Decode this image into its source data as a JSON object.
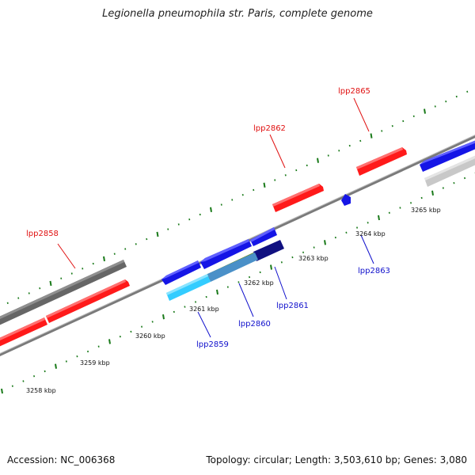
{
  "header": {
    "title": "Legionella pneumophila str. Paris, complete genome"
  },
  "footer": {
    "accession": "Accession: NC_006368",
    "summary": "Topology: circular; Length: 3,503,610 bp; Genes: 3,080"
  },
  "colors": {
    "forward_gene": "#ff1a1a",
    "reverse_gene": "#1515e6",
    "forward_label": "#e01010",
    "reverse_label": "#1010cc",
    "backbone": "#8a8a8a",
    "tick": "#1a7a1a",
    "pseudo_dark": "#606060",
    "pseudo_light": "#c8c8c8",
    "rna_cyan": "#33ccff",
    "rna_olive": "#6b8e23",
    "navy": "#101080"
  },
  "scale_labels": [
    "3258 kbp",
    "3259 kbp",
    "3260 kbp",
    "3261 kbp",
    "3262 kbp",
    "3263 kbp",
    "3264 kbp",
    "3265 kbp"
  ],
  "gene_labels": {
    "lpp2858": "lpp2858",
    "lpp2859": "lpp2859",
    "lpp2860": "lpp2860",
    "lpp2861": "lpp2861",
    "lpp2862": "lpp2862",
    "lpp2863": "lpp2863",
    "lpp2865": "lpp2865"
  }
}
